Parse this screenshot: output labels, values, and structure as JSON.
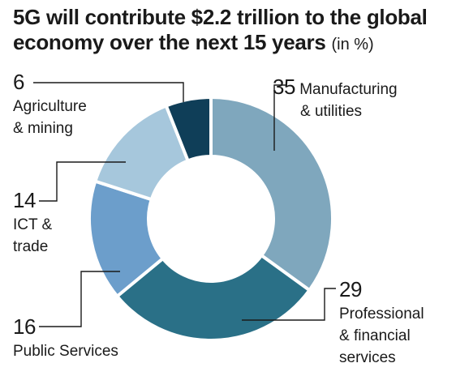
{
  "title": {
    "main": "5G will contribute $2.2 trillion to the global economy over the next 15 years",
    "unit": "(in %)"
  },
  "chart_data": {
    "type": "pie",
    "donut": true,
    "slices": [
      {
        "label_lines": [
          "Manufacturing",
          "& utilities"
        ],
        "value": 35,
        "color": "#7fa7bd"
      },
      {
        "label_lines": [
          "Professional",
          "& financial",
          "services"
        ],
        "value": 29,
        "color": "#2a7087"
      },
      {
        "label_lines": [
          "Public Services"
        ],
        "value": 16,
        "color": "#6c9ecb"
      },
      {
        "label_lines": [
          "ICT &",
          "trade"
        ],
        "value": 14,
        "color": "#a6c7dc"
      },
      {
        "label_lines": [
          "Agriculture",
          "& mining"
        ],
        "value": 6,
        "color": "#0f3e58"
      }
    ]
  }
}
